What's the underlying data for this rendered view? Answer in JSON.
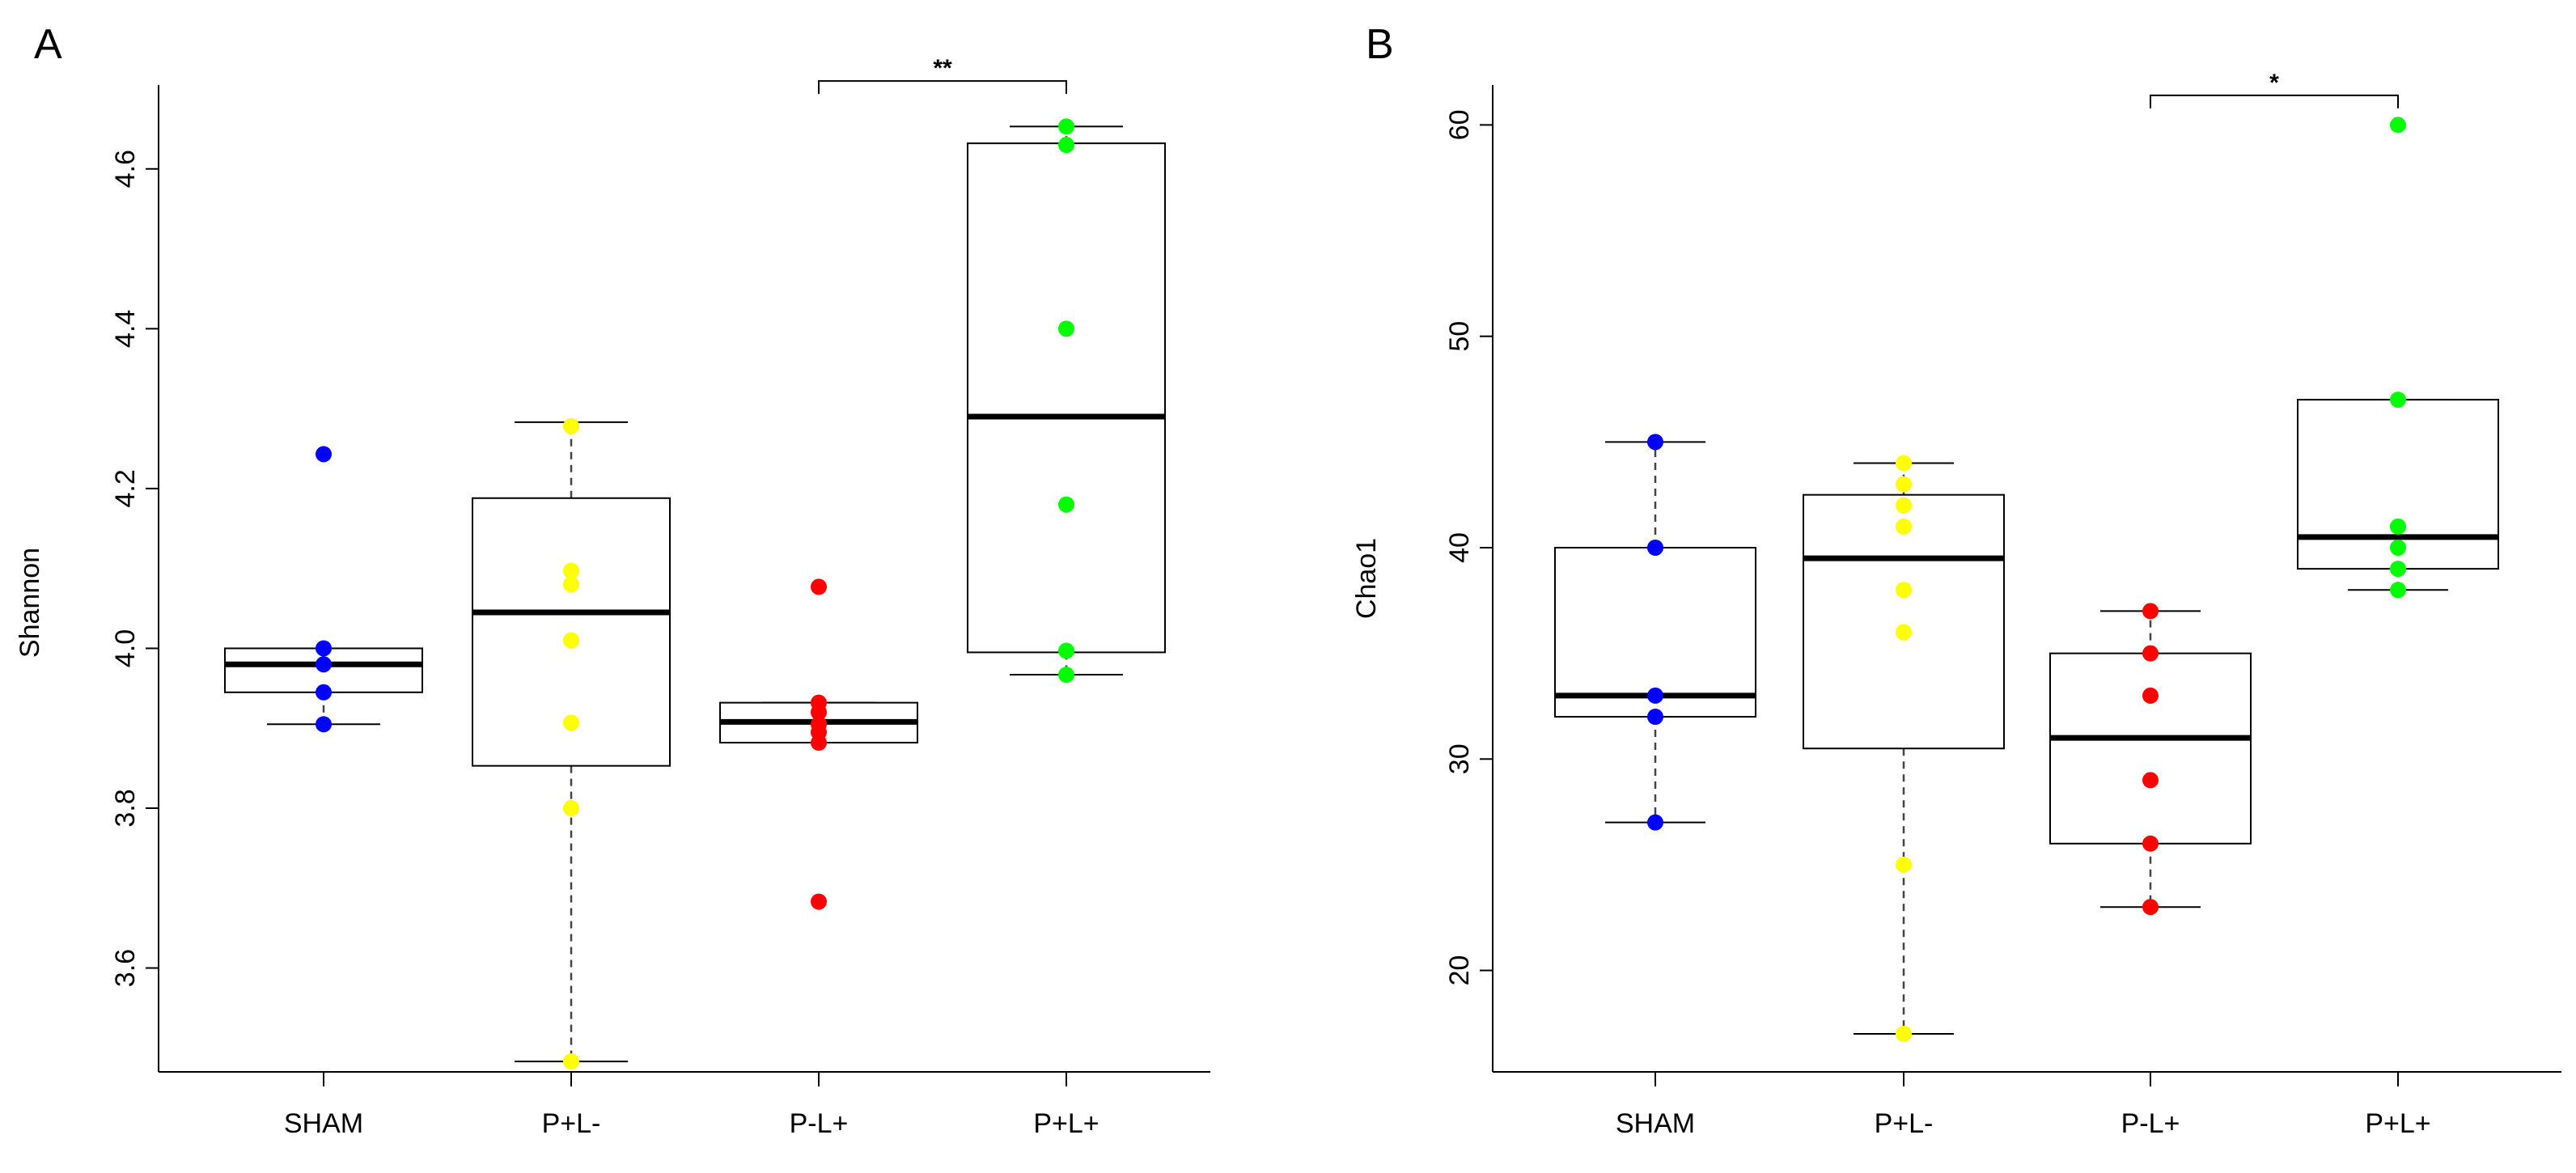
{
  "chart_data": [
    {
      "panel": "A",
      "type": "boxplot",
      "ylabel": "Shannon",
      "xlabel": "",
      "ylim": [
        3.47,
        4.7
      ],
      "yticks": [
        3.6,
        3.8,
        4.0,
        4.2,
        4.4,
        4.6
      ],
      "ytick_labels": [
        "3.6",
        "3.8",
        "4.0",
        "4.2",
        "4.4",
        "4.6"
      ],
      "categories": [
        "SHAM",
        "P+L-",
        "P-L+",
        "P+L+"
      ],
      "colors": [
        "#0000ff",
        "#ffff00",
        "#ff0000",
        "#00ff00"
      ],
      "boxes": [
        {
          "name": "SHAM",
          "whisker_low": 3.905,
          "q1": 3.945,
          "median": 3.98,
          "q3": 4.0,
          "whisker_high": 4.0
        },
        {
          "name": "P+L-",
          "whisker_low": 3.483,
          "q1": 3.853,
          "median": 4.045,
          "q3": 4.188,
          "whisker_high": 4.283
        },
        {
          "name": "P-L+",
          "whisker_low": 3.882,
          "q1": 3.882,
          "median": 3.908,
          "q3": 3.932,
          "whisker_high": 3.932
        },
        {
          "name": "P+L+",
          "whisker_low": 3.967,
          "q1": 3.995,
          "median": 4.29,
          "q3": 4.632,
          "whisker_high": 4.653
        }
      ],
      "points": [
        [
          4.243,
          4.0,
          3.98,
          3.945,
          3.905
        ],
        [
          4.278,
          4.097,
          4.08,
          4.01,
          3.907,
          3.8,
          3.483
        ],
        [
          4.077,
          3.932,
          3.92,
          3.905,
          3.895,
          3.882,
          3.683
        ],
        [
          4.653,
          4.63,
          4.4,
          4.18,
          3.997,
          3.967
        ]
      ],
      "significance": {
        "from": "P-L+",
        "to": "P+L+",
        "label": "**",
        "y": 4.71
      }
    },
    {
      "panel": "B",
      "type": "boxplot",
      "ylabel": "Chao1",
      "xlabel": "",
      "ylim": [
        15.2,
        61.7
      ],
      "yticks": [
        20,
        30,
        40,
        50,
        60
      ],
      "ytick_labels": [
        "20",
        "30",
        "40",
        "50",
        "60"
      ],
      "categories": [
        "SHAM",
        "P+L-",
        "P-L+",
        "P+L+"
      ],
      "colors": [
        "#0000ff",
        "#ffff00",
        "#ff0000",
        "#00ff00"
      ],
      "boxes": [
        {
          "name": "SHAM",
          "whisker_low": 27,
          "q1": 32,
          "median": 33,
          "q3": 40,
          "whisker_high": 45
        },
        {
          "name": "P+L-",
          "whisker_low": 17,
          "q1": 30.5,
          "median": 39.5,
          "q3": 42.5,
          "whisker_high": 44
        },
        {
          "name": "P-L+",
          "whisker_low": 23,
          "q1": 26,
          "median": 31,
          "q3": 35,
          "whisker_high": 37
        },
        {
          "name": "P+L+",
          "whisker_low": 38,
          "q1": 39,
          "median": 40.5,
          "q3": 47,
          "whisker_high": 47
        }
      ],
      "points": [
        [
          45,
          40,
          33,
          32,
          27
        ],
        [
          44,
          43,
          42,
          41,
          38,
          36,
          25,
          17
        ],
        [
          37,
          35,
          33,
          29,
          26,
          23
        ],
        [
          60,
          47,
          41,
          40,
          39,
          38
        ]
      ],
      "significance": {
        "from": "P-L+",
        "to": "P+L+",
        "label": "*",
        "y": 61.4
      }
    }
  ]
}
